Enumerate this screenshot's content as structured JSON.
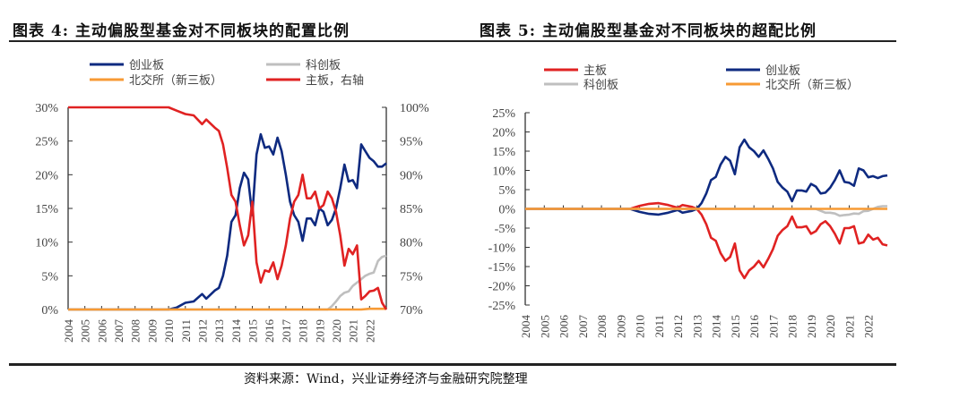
{
  "titles": {
    "left": "图表 4: 主动偏股型基金对不同板块的配置比例",
    "right": "图表 5: 主动偏股型基金对不同板块的超配比例"
  },
  "source": "资料来源：Wind，兴业证券经济与金融研究院整理",
  "colors": {
    "blue": "#0e2a80",
    "gray": "#bfbfbf",
    "orange": "#f79a34",
    "red": "#e02222"
  },
  "chart_data": [
    {
      "type": "line",
      "title": "主动偏股型基金对不同板块的配置比例",
      "x_ticks": [
        "2004",
        "2005",
        "2006",
        "2007",
        "2008",
        "2009",
        "2010",
        "2011",
        "2012",
        "2013",
        "2014",
        "2015",
        "2016",
        "2017",
        "2018",
        "2019",
        "2020",
        "2021",
        "2022"
      ],
      "xlim": [
        2004,
        2023
      ],
      "ylim": [
        0,
        30
      ],
      "y_ticks": [
        "0%",
        "5%",
        "10%",
        "15%",
        "20%",
        "25%",
        "30%"
      ],
      "y2lim": [
        70,
        100
      ],
      "y2_ticks": [
        "70%",
        "75%",
        "80%",
        "85%",
        "90%",
        "95%",
        "100%"
      ],
      "legend": [
        "创业板",
        "科创板",
        "北交所（新三板）",
        "主板，右轴"
      ],
      "series": [
        {
          "name": "创业板",
          "color": "blue",
          "axis": "left",
          "x": [
            2004,
            2010,
            2010.5,
            2011,
            2011.5,
            2012,
            2012.25,
            2012.75,
            2013,
            2013.25,
            2013.5,
            2013.75,
            2014,
            2014.25,
            2014.5,
            2014.75,
            2015,
            2015.25,
            2015.5,
            2015.75,
            2016,
            2016.25,
            2016.5,
            2016.75,
            2017,
            2017.25,
            2017.5,
            2017.75,
            2018,
            2018.25,
            2018.5,
            2018.75,
            2019,
            2019.25,
            2019.5,
            2019.75,
            2020,
            2020.25,
            2020.5,
            2020.75,
            2021,
            2021.25,
            2021.5,
            2021.75,
            2022,
            2022.25,
            2022.5,
            2022.75,
            2023
          ],
          "y": [
            0,
            0,
            0.3,
            1,
            1.2,
            2.3,
            1.6,
            2.8,
            3.2,
            5,
            8,
            13,
            14,
            18,
            20.3,
            19.3,
            14,
            23,
            26,
            24,
            24.2,
            23,
            25.5,
            23.5,
            20,
            16,
            14,
            13,
            10.2,
            13.5,
            13.5,
            12.5,
            15,
            14.5,
            12.5,
            13.3,
            15,
            18,
            21.5,
            19,
            19.2,
            18,
            24.5,
            23.5,
            22.5,
            22,
            21.2,
            21.2,
            21.7
          ]
        },
        {
          "name": "科创板",
          "color": "gray",
          "axis": "left",
          "x": [
            2004,
            2019.5,
            2019.75,
            2020,
            2020.25,
            2020.5,
            2020.75,
            2021,
            2021.25,
            2021.5,
            2021.75,
            2022,
            2022.25,
            2022.5,
            2022.75,
            2023
          ],
          "y": [
            0,
            0,
            0.5,
            1.2,
            2,
            2.5,
            2.7,
            3.5,
            4,
            4.5,
            5,
            5.3,
            5.5,
            7.2,
            7.8,
            8
          ]
        },
        {
          "name": "北交所（新三板）",
          "color": "orange",
          "axis": "left",
          "x": [
            2004,
            2021.5,
            2022,
            2023
          ],
          "y": [
            0,
            0,
            0.1,
            0.1
          ]
        },
        {
          "name": "主板，右轴",
          "color": "red",
          "axis": "right",
          "x": [
            2004,
            2010,
            2010.5,
            2011,
            2011.5,
            2012,
            2012.25,
            2012.75,
            2013,
            2013.25,
            2013.5,
            2013.75,
            2014,
            2014.25,
            2014.5,
            2014.75,
            2015,
            2015.25,
            2015.5,
            2015.75,
            2016,
            2016.25,
            2016.5,
            2016.75,
            2017,
            2017.25,
            2017.5,
            2017.75,
            2018,
            2018.25,
            2018.5,
            2018.75,
            2019,
            2019.25,
            2019.5,
            2019.75,
            2020,
            2020.25,
            2020.5,
            2020.75,
            2021,
            2021.25,
            2021.5,
            2021.75,
            2022,
            2022.25,
            2022.5,
            2022.75,
            2023
          ],
          "y": [
            100,
            100,
            99.5,
            99,
            98.8,
            97.5,
            98.2,
            97,
            96.5,
            94.5,
            91,
            87,
            86,
            82.5,
            79.5,
            81,
            86,
            77,
            74,
            75.8,
            75.6,
            77,
            74.5,
            76.5,
            79.5,
            83.5,
            86,
            87,
            90,
            86.5,
            86.5,
            87.5,
            85,
            85.5,
            87.5,
            86.5,
            84.5,
            81,
            76.5,
            79,
            78.2,
            79.5,
            71.5,
            72,
            72.7,
            72.8,
            73.2,
            71,
            70
          ]
        }
      ]
    },
    {
      "type": "line",
      "title": "主动偏股型基金对不同板块的超配比例",
      "x_ticks": [
        "2004",
        "2005",
        "2006",
        "2007",
        "2008",
        "2009",
        "2010",
        "2011",
        "2012",
        "2013",
        "2014",
        "2015",
        "2016",
        "2017",
        "2018",
        "2019",
        "2020",
        "2021",
        "2022"
      ],
      "xlim": [
        2004,
        2023
      ],
      "ylim": [
        -25,
        25
      ],
      "y_ticks": [
        "-25%",
        "-20%",
        "-15%",
        "-10%",
        "-5%",
        "0%",
        "5%",
        "10%",
        "15%",
        "20%",
        "25%"
      ],
      "legend": [
        "主板",
        "创业板",
        "科创板",
        "北交所（新三板）"
      ],
      "series": [
        {
          "name": "主板",
          "color": "red",
          "x": [
            2004,
            2009.5,
            2010,
            2010.5,
            2011,
            2011.5,
            2012,
            2012.25,
            2012.75,
            2013,
            2013.25,
            2013.5,
            2013.75,
            2014,
            2014.25,
            2014.5,
            2014.75,
            2015,
            2015.25,
            2015.5,
            2015.75,
            2016,
            2016.25,
            2016.5,
            2016.75,
            2017,
            2017.25,
            2017.5,
            2017.75,
            2018,
            2018.25,
            2018.5,
            2018.75,
            2019,
            2019.25,
            2019.5,
            2019.75,
            2020,
            2020.25,
            2020.5,
            2020.75,
            2021,
            2021.25,
            2021.5,
            2021.75,
            2022,
            2022.25,
            2022.5,
            2022.75,
            2023
          ],
          "y": [
            0,
            0,
            0.8,
            1.3,
            1.5,
            1,
            0.3,
            1,
            0.5,
            0,
            -1.5,
            -4,
            -7.5,
            -8.3,
            -11.5,
            -13.5,
            -12.5,
            -9,
            -16,
            -18,
            -16,
            -15,
            -13.5,
            -15.2,
            -13,
            -10.5,
            -7,
            -5.5,
            -4.5,
            -2,
            -4.8,
            -4.8,
            -4.5,
            -6.5,
            -5.8,
            -4,
            -3.2,
            -4.5,
            -6.5,
            -9,
            -5,
            -5,
            -4.5,
            -9,
            -8.7,
            -6.7,
            -8,
            -7.5,
            -9.2,
            -9.5
          ]
        },
        {
          "name": "创业板",
          "color": "blue",
          "x": [
            2004,
            2009.5,
            2010,
            2010.5,
            2011,
            2011.5,
            2012,
            2012.25,
            2012.75,
            2013,
            2013.25,
            2013.5,
            2013.75,
            2014,
            2014.25,
            2014.5,
            2014.75,
            2015,
            2015.25,
            2015.5,
            2015.75,
            2016,
            2016.25,
            2016.5,
            2016.75,
            2017,
            2017.25,
            2017.5,
            2017.75,
            2018,
            2018.25,
            2018.5,
            2018.75,
            2019,
            2019.25,
            2019.5,
            2019.75,
            2020,
            2020.25,
            2020.5,
            2020.75,
            2021,
            2021.25,
            2021.5,
            2021.75,
            2022,
            2022.25,
            2022.5,
            2022.75,
            2023
          ],
          "y": [
            0,
            0,
            -0.8,
            -1.3,
            -1.5,
            -1,
            -0.3,
            -1,
            -0.5,
            0,
            1.5,
            4,
            7.5,
            8.3,
            11.5,
            13.5,
            12.5,
            9,
            16,
            18,
            16,
            15,
            13.5,
            15.2,
            13,
            10.5,
            7,
            5.5,
            4.5,
            2,
            4.8,
            4.8,
            4.5,
            6.5,
            5.8,
            4,
            4.2,
            5.5,
            7.5,
            10,
            7,
            6.8,
            6,
            10.5,
            10,
            8.2,
            8.5,
            8,
            8.5,
            8.7
          ]
        },
        {
          "name": "科创板",
          "color": "gray",
          "x": [
            2004,
            2019.25,
            2019.75,
            2020,
            2020.25,
            2020.5,
            2020.75,
            2021,
            2021.25,
            2021.5,
            2021.75,
            2022,
            2022.25,
            2022.5,
            2022.75,
            2023
          ],
          "y": [
            0,
            0,
            -1,
            -1,
            -1.2,
            -1.8,
            -1.6,
            -1.5,
            -1.2,
            -1.3,
            -0.6,
            -0.5,
            0,
            0.5,
            0.7,
            0.7
          ]
        },
        {
          "name": "北交所（新三板）",
          "color": "orange",
          "x": [
            2004,
            2023
          ],
          "y": [
            0,
            0
          ]
        }
      ]
    }
  ]
}
